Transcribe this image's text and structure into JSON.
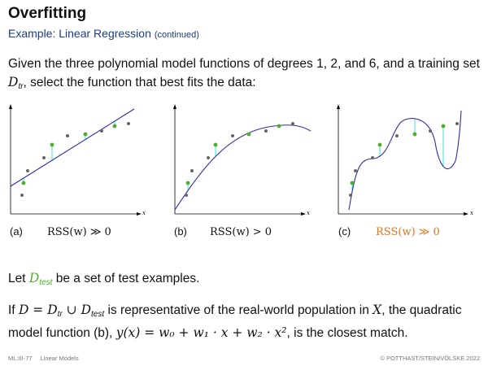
{
  "slide": {
    "title": "Overfitting",
    "subtitle": "Example: Linear Regression",
    "subtitle_note": "(continued)",
    "intro_part1": "Given the three polynomial model functions of degrees 1, 2, and 6, and a training set",
    "intro_D": "D",
    "intro_sub_tr": "tr",
    "intro_part2": ", select the function that best fits the data:",
    "test_pre": "Let",
    "test_D": "D",
    "test_sub": "test",
    "test_post": "be a set of test examples.",
    "p2_if": "If",
    "p2_eq": "D = D",
    "p2_tr": "tr",
    "p2_cup": " ∪ D",
    "p2_test": "test",
    "p2_mid": "is representative of the real-world population in",
    "p2_X": "X",
    "p2_mid2": ", the quadratic model function (b),",
    "p2_formula": "y(x) = w₀ + w₁ · x + w₂ · x²",
    "p2_end": ", is the closest match.",
    "footer_left_code": "ML:III-77",
    "footer_left_topic": "Linear Models",
    "footer_right": "© POTTHAST/STEIN/VÖLSKE 2022"
  },
  "panels": [
    {
      "label": "(a)",
      "rss": "RSS(w) ≫ 0",
      "degree": 1,
      "highlight": false
    },
    {
      "label": "(b)",
      "rss": "RSS(w) > 0",
      "degree": 2,
      "highlight": false
    },
    {
      "label": "(c)",
      "rss": "RSS(w) ≫ 0",
      "degree": 6,
      "highlight": true
    }
  ],
  "axis_label": "x",
  "colors": {
    "curve": "#2c2ca8",
    "residual": "#40e0d0",
    "train_point": "#4caf2a",
    "test_point": "#666666",
    "highlight": "#e0741a",
    "subtitle": "#1a3c8c"
  }
}
